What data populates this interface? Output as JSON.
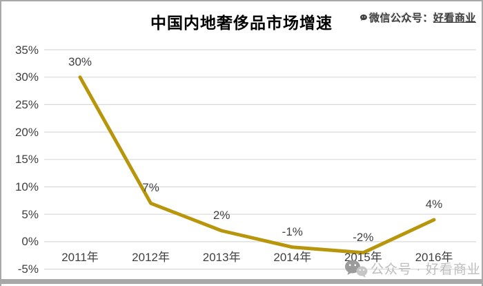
{
  "title": "中国内地奢侈品市场增速",
  "watermark_top": {
    "icon": "wechat-bubble-icon",
    "prefix": "微信公众号：",
    "name": "好看商业"
  },
  "watermark_bottom": {
    "icon": "wechat-icon",
    "text": "公众号 · 好看商业"
  },
  "colors": {
    "line": "#B8960B",
    "grid": "#D9D9D9",
    "axis_text": "#404040",
    "title_text": "#000000",
    "watermark_top_text": "#3F3F3F",
    "watermark_bottom_text": "#BDBDBD",
    "frame_border": "#A8A8A8"
  },
  "chart_data": {
    "type": "line",
    "title": "中国内地奢侈品市场增速",
    "categories": [
      "2011年",
      "2012年",
      "2013年",
      "2014年",
      "2015年",
      "2016年"
    ],
    "values": [
      30,
      7,
      2,
      -1,
      -2,
      4
    ],
    "data_labels": [
      "30%",
      "7%",
      "2%",
      "-1%",
      "-2%",
      "4%"
    ],
    "xlabel": "",
    "ylabel": "",
    "ylim": [
      -5,
      35
    ],
    "ytick_step": 5,
    "ytick_labels": [
      "35%",
      "30%",
      "25%",
      "20%",
      "15%",
      "10%",
      "5%",
      "0%",
      "-5%"
    ],
    "grid": "horizontal",
    "legend": "none",
    "line_width": 5
  }
}
